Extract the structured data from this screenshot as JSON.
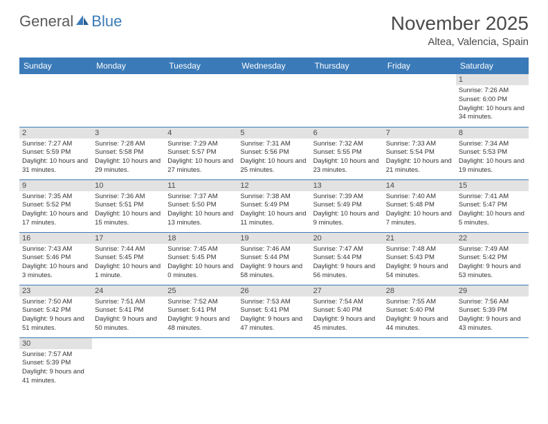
{
  "logo": {
    "text1": "General",
    "text2": "Blue"
  },
  "title": "November 2025",
  "subtitle": "Altea, Valencia, Spain",
  "colors": {
    "header_bg": "#3a7ab8",
    "daynum_bg": "#e2e2e2",
    "border": "#3a7ab8",
    "title_color": "#4a4a4a",
    "logo_gray": "#5a5a5a",
    "logo_blue": "#3a7ab8"
  },
  "weekdays": [
    "Sunday",
    "Monday",
    "Tuesday",
    "Wednesday",
    "Thursday",
    "Friday",
    "Saturday"
  ],
  "weeks": [
    [
      null,
      null,
      null,
      null,
      null,
      null,
      {
        "n": "1",
        "sr": "Sunrise: 7:26 AM",
        "ss": "Sunset: 6:00 PM",
        "dl": "Daylight: 10 hours and 34 minutes."
      }
    ],
    [
      {
        "n": "2",
        "sr": "Sunrise: 7:27 AM",
        "ss": "Sunset: 5:59 PM",
        "dl": "Daylight: 10 hours and 31 minutes."
      },
      {
        "n": "3",
        "sr": "Sunrise: 7:28 AM",
        "ss": "Sunset: 5:58 PM",
        "dl": "Daylight: 10 hours and 29 minutes."
      },
      {
        "n": "4",
        "sr": "Sunrise: 7:29 AM",
        "ss": "Sunset: 5:57 PM",
        "dl": "Daylight: 10 hours and 27 minutes."
      },
      {
        "n": "5",
        "sr": "Sunrise: 7:31 AM",
        "ss": "Sunset: 5:56 PM",
        "dl": "Daylight: 10 hours and 25 minutes."
      },
      {
        "n": "6",
        "sr": "Sunrise: 7:32 AM",
        "ss": "Sunset: 5:55 PM",
        "dl": "Daylight: 10 hours and 23 minutes."
      },
      {
        "n": "7",
        "sr": "Sunrise: 7:33 AM",
        "ss": "Sunset: 5:54 PM",
        "dl": "Daylight: 10 hours and 21 minutes."
      },
      {
        "n": "8",
        "sr": "Sunrise: 7:34 AM",
        "ss": "Sunset: 5:53 PM",
        "dl": "Daylight: 10 hours and 19 minutes."
      }
    ],
    [
      {
        "n": "9",
        "sr": "Sunrise: 7:35 AM",
        "ss": "Sunset: 5:52 PM",
        "dl": "Daylight: 10 hours and 17 minutes."
      },
      {
        "n": "10",
        "sr": "Sunrise: 7:36 AM",
        "ss": "Sunset: 5:51 PM",
        "dl": "Daylight: 10 hours and 15 minutes."
      },
      {
        "n": "11",
        "sr": "Sunrise: 7:37 AM",
        "ss": "Sunset: 5:50 PM",
        "dl": "Daylight: 10 hours and 13 minutes."
      },
      {
        "n": "12",
        "sr": "Sunrise: 7:38 AM",
        "ss": "Sunset: 5:49 PM",
        "dl": "Daylight: 10 hours and 11 minutes."
      },
      {
        "n": "13",
        "sr": "Sunrise: 7:39 AM",
        "ss": "Sunset: 5:49 PM",
        "dl": "Daylight: 10 hours and 9 minutes."
      },
      {
        "n": "14",
        "sr": "Sunrise: 7:40 AM",
        "ss": "Sunset: 5:48 PM",
        "dl": "Daylight: 10 hours and 7 minutes."
      },
      {
        "n": "15",
        "sr": "Sunrise: 7:41 AM",
        "ss": "Sunset: 5:47 PM",
        "dl": "Daylight: 10 hours and 5 minutes."
      }
    ],
    [
      {
        "n": "16",
        "sr": "Sunrise: 7:43 AM",
        "ss": "Sunset: 5:46 PM",
        "dl": "Daylight: 10 hours and 3 minutes."
      },
      {
        "n": "17",
        "sr": "Sunrise: 7:44 AM",
        "ss": "Sunset: 5:45 PM",
        "dl": "Daylight: 10 hours and 1 minute."
      },
      {
        "n": "18",
        "sr": "Sunrise: 7:45 AM",
        "ss": "Sunset: 5:45 PM",
        "dl": "Daylight: 10 hours and 0 minutes."
      },
      {
        "n": "19",
        "sr": "Sunrise: 7:46 AM",
        "ss": "Sunset: 5:44 PM",
        "dl": "Daylight: 9 hours and 58 minutes."
      },
      {
        "n": "20",
        "sr": "Sunrise: 7:47 AM",
        "ss": "Sunset: 5:44 PM",
        "dl": "Daylight: 9 hours and 56 minutes."
      },
      {
        "n": "21",
        "sr": "Sunrise: 7:48 AM",
        "ss": "Sunset: 5:43 PM",
        "dl": "Daylight: 9 hours and 54 minutes."
      },
      {
        "n": "22",
        "sr": "Sunrise: 7:49 AM",
        "ss": "Sunset: 5:42 PM",
        "dl": "Daylight: 9 hours and 53 minutes."
      }
    ],
    [
      {
        "n": "23",
        "sr": "Sunrise: 7:50 AM",
        "ss": "Sunset: 5:42 PM",
        "dl": "Daylight: 9 hours and 51 minutes."
      },
      {
        "n": "24",
        "sr": "Sunrise: 7:51 AM",
        "ss": "Sunset: 5:41 PM",
        "dl": "Daylight: 9 hours and 50 minutes."
      },
      {
        "n": "25",
        "sr": "Sunrise: 7:52 AM",
        "ss": "Sunset: 5:41 PM",
        "dl": "Daylight: 9 hours and 48 minutes."
      },
      {
        "n": "26",
        "sr": "Sunrise: 7:53 AM",
        "ss": "Sunset: 5:41 PM",
        "dl": "Daylight: 9 hours and 47 minutes."
      },
      {
        "n": "27",
        "sr": "Sunrise: 7:54 AM",
        "ss": "Sunset: 5:40 PM",
        "dl": "Daylight: 9 hours and 45 minutes."
      },
      {
        "n": "28",
        "sr": "Sunrise: 7:55 AM",
        "ss": "Sunset: 5:40 PM",
        "dl": "Daylight: 9 hours and 44 minutes."
      },
      {
        "n": "29",
        "sr": "Sunrise: 7:56 AM",
        "ss": "Sunset: 5:39 PM",
        "dl": "Daylight: 9 hours and 43 minutes."
      }
    ],
    [
      {
        "n": "30",
        "sr": "Sunrise: 7:57 AM",
        "ss": "Sunset: 5:39 PM",
        "dl": "Daylight: 9 hours and 41 minutes."
      },
      null,
      null,
      null,
      null,
      null,
      null
    ]
  ]
}
